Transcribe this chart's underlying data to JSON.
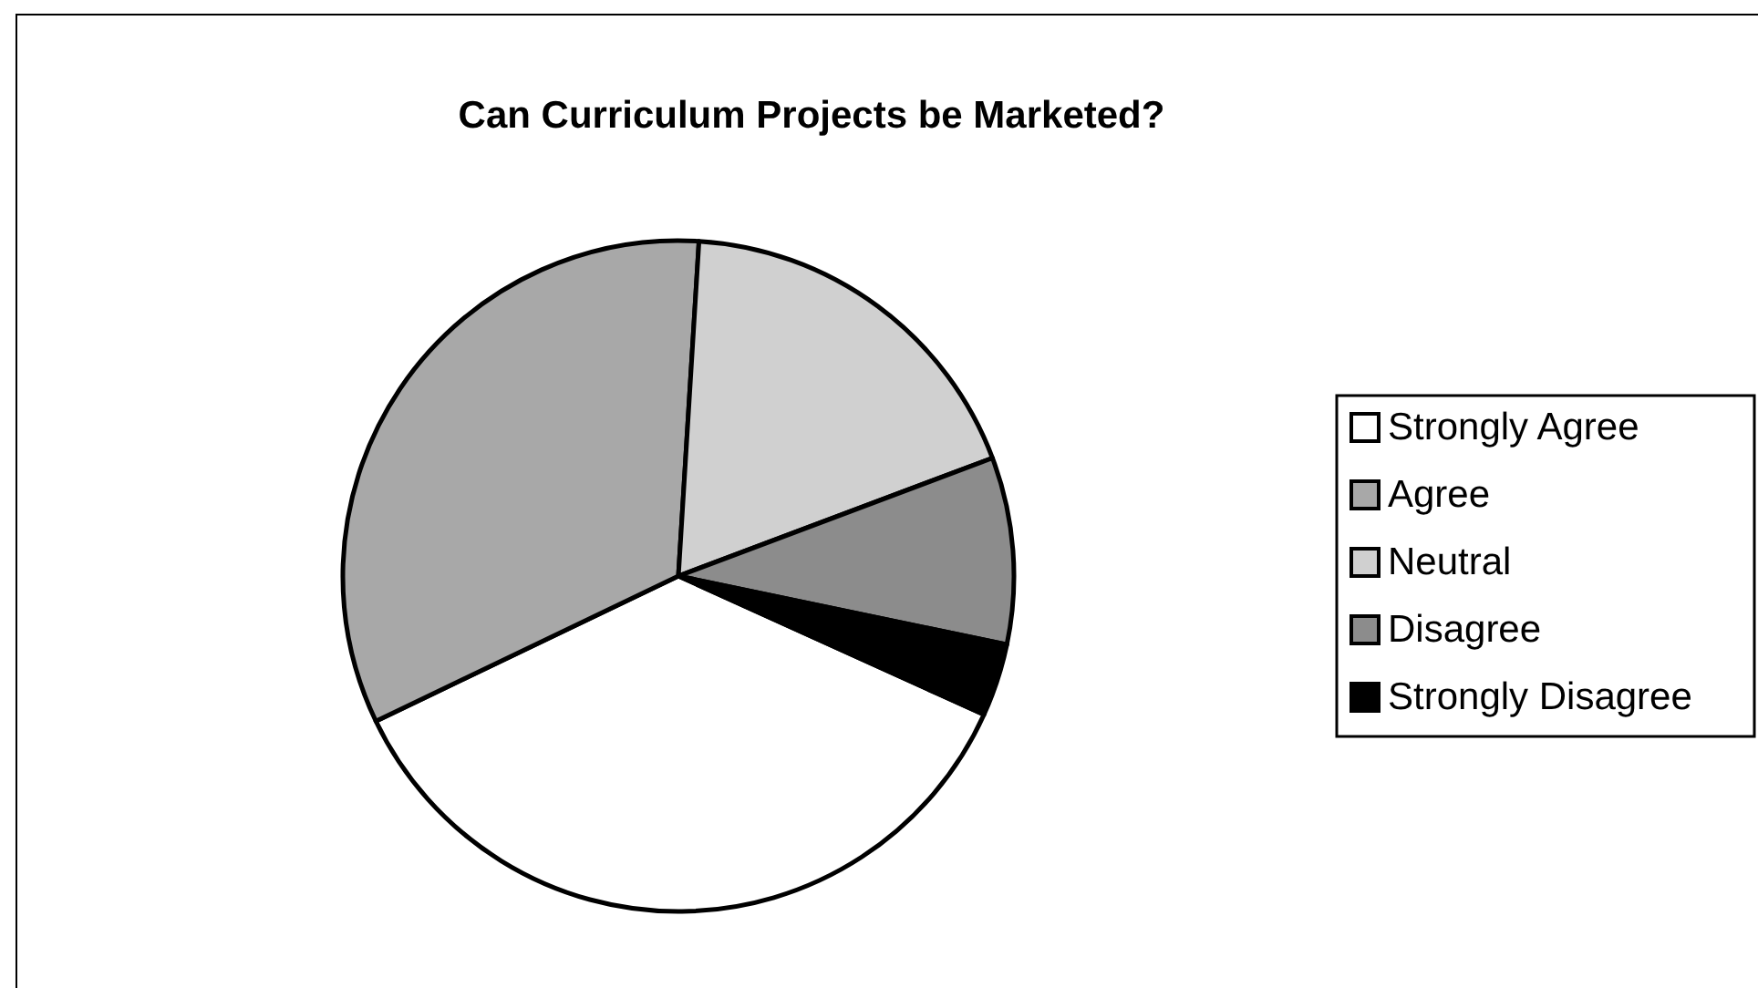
{
  "chart_data": {
    "type": "pie",
    "title": "Can Curriculum Projects be Marketed?",
    "categories": [
      "Strongly Agree",
      "Agree",
      "Neutral",
      "Disagree",
      "Strongly Disagree"
    ],
    "values": [
      36.1,
      33.1,
      18.3,
      9.0,
      3.5
    ],
    "colors": [
      "#ffffff",
      "#a8a8a8",
      "#d0d0d0",
      "#8c8c8c",
      "#000000"
    ],
    "legend": "right"
  }
}
